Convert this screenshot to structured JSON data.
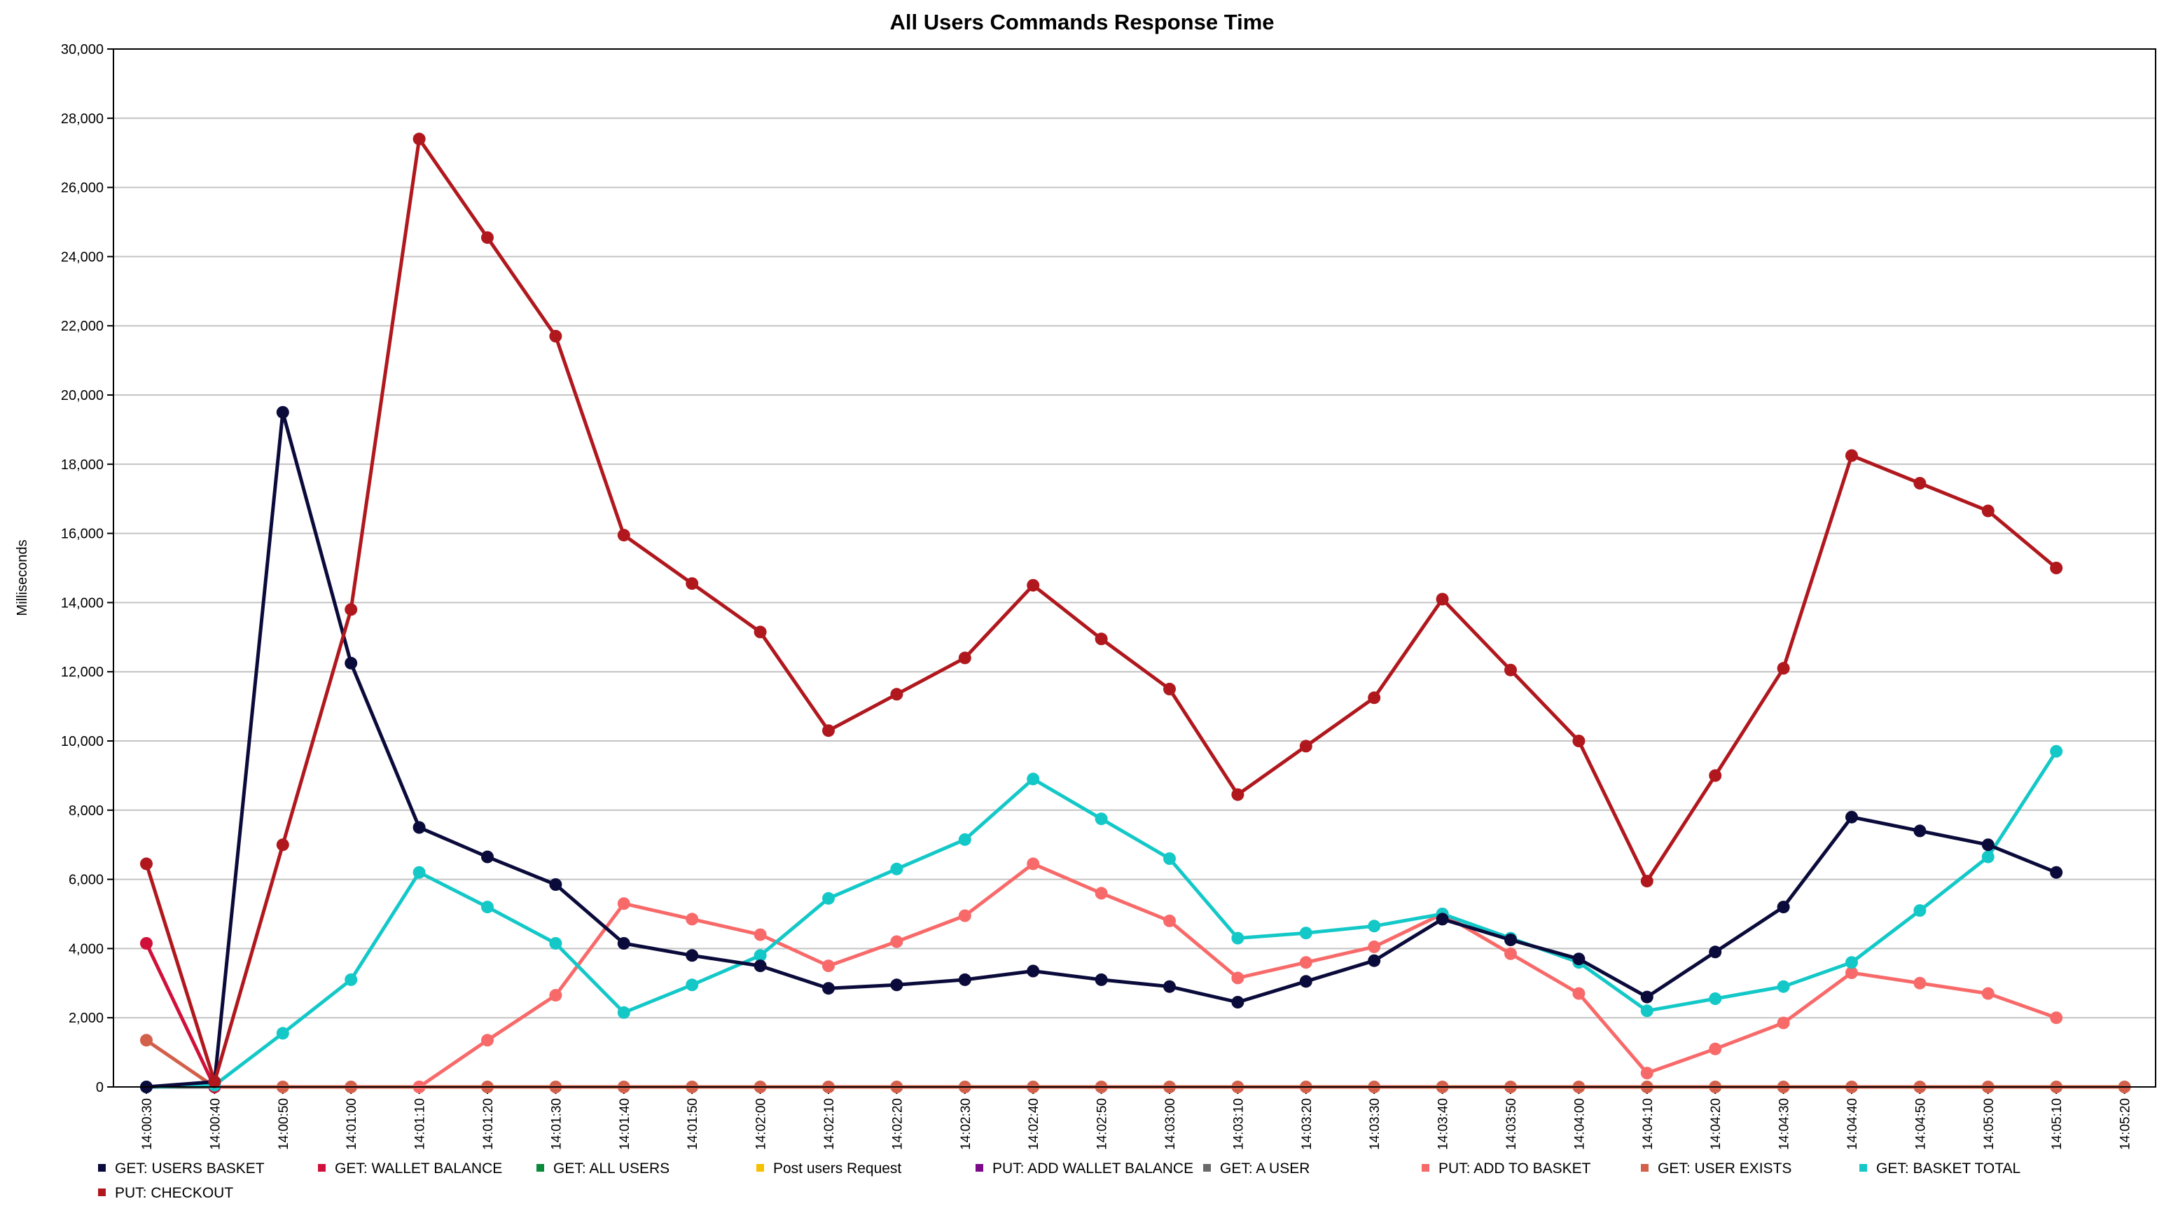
{
  "chart_data": {
    "type": "line",
    "title": "All Users Commands Response Time",
    "xlabel": "",
    "ylabel": "Milliseconds",
    "ylim": [
      0,
      30000
    ],
    "yticks": [
      0,
      2000,
      4000,
      6000,
      8000,
      10000,
      12000,
      14000,
      16000,
      18000,
      20000,
      22000,
      24000,
      26000,
      28000,
      30000
    ],
    "ytick_labels": [
      "0",
      "2,000",
      "4,000",
      "6,000",
      "8,000",
      "10,000",
      "12,000",
      "14,000",
      "16,000",
      "18,000",
      "20,000",
      "22,000",
      "24,000",
      "26,000",
      "28,000",
      "30,000"
    ],
    "grid": true,
    "legend_position": "bottom",
    "categories": [
      "14:00:30",
      "14:00:40",
      "14:00:50",
      "14:01:00",
      "14:01:10",
      "14:01:20",
      "14:01:30",
      "14:01:40",
      "14:01:50",
      "14:02:00",
      "14:02:10",
      "14:02:20",
      "14:02:30",
      "14:02:40",
      "14:02:50",
      "14:03:00",
      "14:03:10",
      "14:03:20",
      "14:03:30",
      "14:03:40",
      "14:03:50",
      "14:04:00",
      "14:04:10",
      "14:04:20",
      "14:04:30",
      "14:04:40",
      "14:04:50",
      "14:05:00",
      "14:05:10",
      "14:05:20"
    ],
    "series": [
      {
        "name": "GET: USERS BASKET",
        "color": "#0b0b3b",
        "draw_points": true,
        "values": [
          0,
          150,
          19500,
          12250,
          7500,
          6650,
          5850,
          4150,
          3800,
          3500,
          2850,
          2950,
          3100,
          3350,
          3100,
          2900,
          2450,
          3050,
          3650,
          4850,
          4250,
          3700,
          2600,
          3900,
          5200,
          7800,
          7400,
          7000,
          6200,
          null
        ]
      },
      {
        "name": "GET: WALLET BALANCE",
        "color": "#d0103a",
        "draw_points": true,
        "values": [
          4150,
          0,
          null,
          null,
          null,
          null,
          null,
          null,
          null,
          null,
          null,
          null,
          null,
          null,
          null,
          null,
          null,
          null,
          null,
          null,
          null,
          null,
          null,
          null,
          null,
          null,
          null,
          null,
          null,
          null
        ]
      },
      {
        "name": "GET: ALL USERS",
        "color": "#0a8a3a",
        "draw_points": false,
        "values": [
          0,
          0,
          0,
          0,
          0,
          0,
          0,
          0,
          0,
          0,
          0,
          0,
          0,
          0,
          0,
          0,
          0,
          0,
          0,
          0,
          0,
          0,
          0,
          0,
          0,
          0,
          0,
          0,
          0,
          0
        ]
      },
      {
        "name": "Post users Request",
        "color": "#f5c000",
        "draw_points": false,
        "values": [
          0,
          0,
          0,
          0,
          0,
          0,
          0,
          0,
          0,
          0,
          0,
          0,
          0,
          0,
          0,
          0,
          0,
          0,
          0,
          0,
          0,
          0,
          0,
          0,
          0,
          0,
          0,
          0,
          0,
          0
        ]
      },
      {
        "name": "PUT: ADD WALLET BALANCE",
        "color": "#7a0a8a",
        "draw_points": false,
        "values": [
          0,
          0,
          0,
          0,
          0,
          0,
          0,
          0,
          0,
          0,
          0,
          0,
          0,
          0,
          0,
          0,
          0,
          0,
          0,
          0,
          0,
          0,
          0,
          0,
          0,
          0,
          0,
          0,
          0,
          0
        ]
      },
      {
        "name": "GET: A USER",
        "color": "#6a6a6a",
        "draw_points": false,
        "values": [
          0,
          0,
          0,
          0,
          0,
          0,
          0,
          0,
          0,
          0,
          0,
          0,
          0,
          0,
          0,
          0,
          0,
          0,
          0,
          0,
          0,
          0,
          0,
          0,
          0,
          0,
          0,
          0,
          0,
          0
        ]
      },
      {
        "name": "PUT: ADD TO BASKET",
        "color": "#f86a6a",
        "draw_points": true,
        "values": [
          null,
          null,
          null,
          null,
          0,
          1350,
          2650,
          5300,
          4850,
          4400,
          3500,
          4200,
          4950,
          6450,
          5600,
          4800,
          3150,
          3600,
          4050,
          5000,
          3850,
          2700,
          400,
          1100,
          1850,
          3300,
          3000,
          2700,
          2000,
          null
        ]
      },
      {
        "name": "GET: USER EXISTS",
        "color": "#d2604a",
        "draw_points": true,
        "values": [
          1350,
          0,
          0,
          0,
          0,
          0,
          0,
          0,
          0,
          0,
          0,
          0,
          0,
          0,
          0,
          0,
          0,
          0,
          0,
          0,
          0,
          0,
          0,
          0,
          0,
          0,
          0,
          0,
          0,
          0
        ]
      },
      {
        "name": "GET: BASKET TOTAL",
        "color": "#14c8c8",
        "draw_points": true,
        "values": [
          0,
          50,
          1550,
          3100,
          6200,
          5200,
          4150,
          2150,
          2950,
          3800,
          5450,
          6300,
          7150,
          8900,
          7750,
          6600,
          4300,
          4450,
          4650,
          5000,
          4300,
          3600,
          2200,
          2550,
          2900,
          3600,
          5100,
          6650,
          9700,
          null
        ]
      },
      {
        "name": "PUT: CHECKOUT",
        "color": "#b0181e",
        "draw_points": true,
        "values": [
          6450,
          150,
          7000,
          13800,
          27400,
          24550,
          21700,
          15950,
          14550,
          13150,
          10300,
          11350,
          12400,
          14500,
          12950,
          11500,
          8450,
          9850,
          11250,
          14100,
          12050,
          10000,
          5950,
          9000,
          12100,
          18250,
          17450,
          16650,
          15000,
          null
        ]
      }
    ]
  }
}
